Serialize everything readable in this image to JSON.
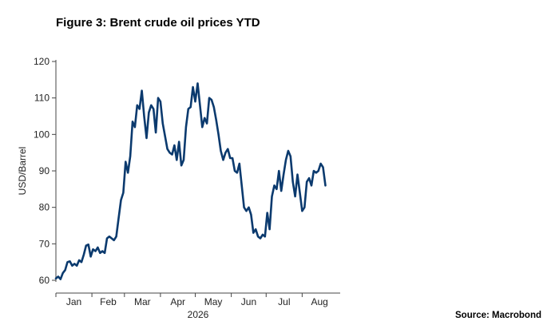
{
  "header": {
    "title": "Figure 3: Brent crude oil prices YTD"
  },
  "footer": {
    "source": "Source: Macrobond"
  },
  "colors": {
    "series": "#0b3a6e",
    "axis": "#444444",
    "text": "#222222"
  },
  "chart_data": {
    "type": "line",
    "title": "Figure 3: Brent crude oil prices YTD",
    "xlabel": "2026",
    "ylabel": "USD/Barrel",
    "ylim": [
      60,
      120
    ],
    "yticks": [
      60,
      70,
      80,
      90,
      100,
      110,
      120
    ],
    "xlim": [
      "2026-01-01",
      "2026-08-31"
    ],
    "month_ticks": [
      "Jan",
      "Feb",
      "Mar",
      "Apr",
      "May",
      "Jun",
      "Jul",
      "Aug"
    ],
    "year_label": "2026",
    "grid": false,
    "legend": "none",
    "series": [
      {
        "x": [
          "2026-01-01",
          "2026-01-03",
          "2026-01-05",
          "2026-01-07",
          "2026-01-09",
          "2026-01-11",
          "2026-01-13",
          "2026-01-15",
          "2026-01-17",
          "2026-01-19",
          "2026-01-21",
          "2026-01-23",
          "2026-01-25",
          "2026-01-27",
          "2026-01-29",
          "2026-01-31",
          "2026-02-02",
          "2026-02-04",
          "2026-02-06",
          "2026-02-08",
          "2026-02-10",
          "2026-02-12",
          "2026-02-14",
          "2026-02-16",
          "2026-02-18",
          "2026-02-20",
          "2026-02-22",
          "2026-02-24",
          "2026-02-26",
          "2026-02-28",
          "2026-03-02",
          "2026-03-04",
          "2026-03-06",
          "2026-03-08",
          "2026-03-10",
          "2026-03-12",
          "2026-03-14",
          "2026-03-16",
          "2026-03-18",
          "2026-03-20",
          "2026-03-22",
          "2026-03-24",
          "2026-03-26",
          "2026-03-28",
          "2026-03-30",
          "2026-04-01",
          "2026-04-03",
          "2026-04-05",
          "2026-04-07",
          "2026-04-09",
          "2026-04-11",
          "2026-04-13",
          "2026-04-15",
          "2026-04-17",
          "2026-04-19",
          "2026-04-21",
          "2026-04-23",
          "2026-04-25",
          "2026-04-27",
          "2026-04-29",
          "2026-05-01",
          "2026-05-03",
          "2026-05-05",
          "2026-05-07",
          "2026-05-09",
          "2026-05-11",
          "2026-05-13",
          "2026-05-15",
          "2026-05-17",
          "2026-05-19",
          "2026-05-21",
          "2026-05-23",
          "2026-05-25",
          "2026-05-27",
          "2026-05-29",
          "2026-05-31",
          "2026-06-02",
          "2026-06-04",
          "2026-06-06",
          "2026-06-08",
          "2026-06-10",
          "2026-06-12",
          "2026-06-14",
          "2026-06-16",
          "2026-06-18",
          "2026-06-20",
          "2026-06-22",
          "2026-06-24",
          "2026-06-26",
          "2026-06-28",
          "2026-06-30",
          "2026-07-02",
          "2026-07-04",
          "2026-07-06",
          "2026-07-08",
          "2026-07-10",
          "2026-07-12",
          "2026-07-14",
          "2026-07-16",
          "2026-07-18",
          "2026-07-20",
          "2026-07-22",
          "2026-07-24",
          "2026-07-26",
          "2026-07-28",
          "2026-07-30",
          "2026-08-01",
          "2026-08-03",
          "2026-08-05",
          "2026-08-07",
          "2026-08-09",
          "2026-08-11",
          "2026-08-13",
          "2026-08-15",
          "2026-08-17",
          "2026-08-19",
          "2026-08-21"
        ],
        "values": [
          60.5,
          61,
          60.3,
          62,
          62.8,
          65,
          65.2,
          64,
          64.5,
          64,
          65.5,
          65,
          67,
          69.5,
          69.8,
          66.5,
          68.5,
          68,
          69,
          67.5,
          68,
          67.5,
          71.5,
          72,
          71.5,
          71,
          72,
          77,
          82,
          84,
          92.5,
          89.5,
          94,
          103.5,
          102,
          108,
          107,
          112,
          105,
          99,
          106,
          108,
          107,
          100.5,
          110,
          109,
          103,
          99.5,
          96,
          95,
          94.5,
          97,
          93,
          98,
          91.5,
          93,
          102,
          107,
          107.5,
          113,
          109,
          114,
          108,
          102,
          104.5,
          103,
          110,
          109.5,
          107.5,
          104,
          100,
          95.5,
          93,
          95,
          96,
          93.5,
          93.5,
          90,
          89.5,
          92,
          86,
          80,
          79,
          80,
          78,
          73,
          74,
          72,
          71.5,
          72.5,
          72,
          78.5,
          74,
          83,
          86,
          85,
          90,
          84.5,
          89,
          93,
          95.5,
          94,
          87,
          83,
          89,
          84,
          79,
          80,
          87,
          88,
          86,
          90,
          89.5,
          90,
          92,
          91,
          86
        ]
      }
    ]
  }
}
